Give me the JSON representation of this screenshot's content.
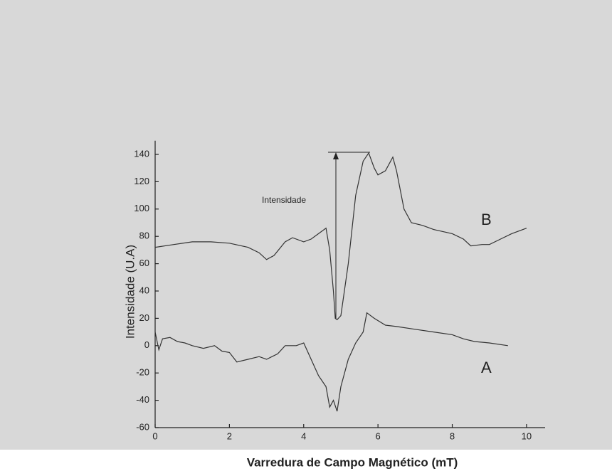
{
  "chart_data": {
    "type": "line",
    "xlabel": "Varredura de Campo Magnético (mT)",
    "ylabel": "Intensidade (U.A)",
    "annotation": "Intensidade",
    "xlim": [
      0,
      10.5
    ],
    "ylim": [
      -60,
      150
    ],
    "xticks": [
      0,
      2,
      4,
      6,
      8,
      10
    ],
    "yticks": [
      -60,
      -40,
      -20,
      0,
      20,
      40,
      60,
      80,
      100,
      120,
      140
    ],
    "series": [
      {
        "name": "B",
        "color": "#333333",
        "x": [
          0,
          0.5,
          1,
          1.5,
          2,
          2.5,
          2.8,
          3.0,
          3.2,
          3.5,
          3.7,
          4.0,
          4.2,
          4.4,
          4.6,
          4.7,
          4.8,
          4.85,
          4.9,
          5.0,
          5.2,
          5.4,
          5.6,
          5.75,
          5.9,
          6.0,
          6.2,
          6.4,
          6.5,
          6.7,
          6.9,
          7.2,
          7.5,
          8.0,
          8.3,
          8.5,
          8.8,
          9.0,
          9.3,
          9.6,
          10
        ],
        "values": [
          72,
          74,
          76,
          76,
          75,
          72,
          68,
          63,
          66,
          76,
          79,
          76,
          78,
          82,
          86,
          70,
          40,
          20,
          19,
          22,
          60,
          110,
          135,
          141,
          130,
          125,
          128,
          138,
          128,
          100,
          90,
          88,
          85,
          82,
          78,
          73,
          74,
          74,
          78,
          82,
          86
        ]
      },
      {
        "name": "A",
        "color": "#333333",
        "x": [
          0,
          0.1,
          0.2,
          0.4,
          0.6,
          0.8,
          1.0,
          1.3,
          1.6,
          1.8,
          2.0,
          2.2,
          2.5,
          2.8,
          3.0,
          3.3,
          3.5,
          3.8,
          4.0,
          4.2,
          4.4,
          4.6,
          4.7,
          4.8,
          4.9,
          5.0,
          5.2,
          5.4,
          5.6,
          5.7,
          5.9,
          6.2,
          6.5,
          7.0,
          7.5,
          8.0,
          8.3,
          8.6,
          9.0,
          9.5
        ],
        "values": [
          10,
          -3,
          5,
          6,
          3,
          2,
          0,
          -2,
          0,
          -4,
          -5,
          -12,
          -10,
          -8,
          -10,
          -6,
          0,
          0,
          2,
          -10,
          -22,
          -30,
          -45,
          -40,
          -48,
          -30,
          -10,
          2,
          10,
          24,
          20,
          15,
          14,
          12,
          10,
          8,
          5,
          3,
          2,
          0
        ]
      }
    ]
  }
}
